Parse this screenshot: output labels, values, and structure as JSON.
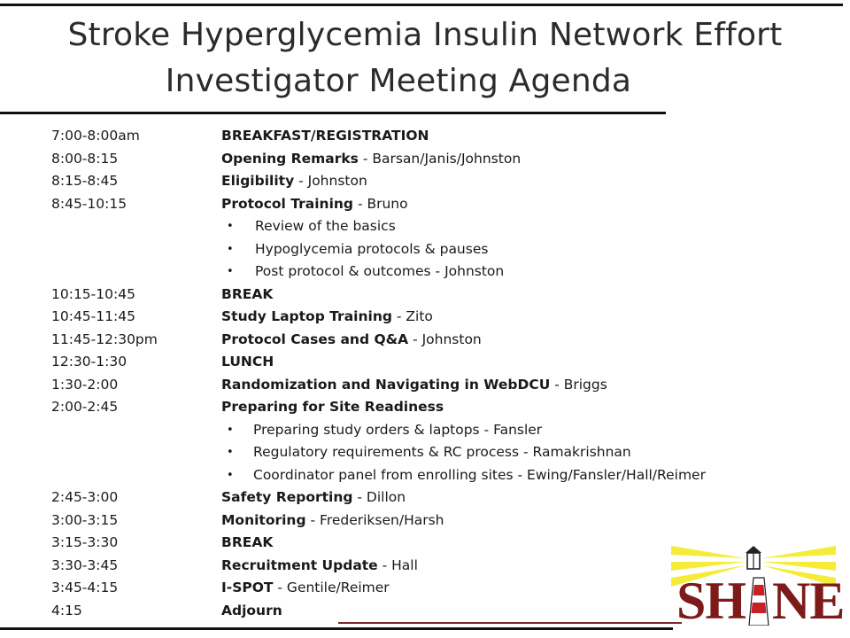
{
  "title": {
    "line1": "Stroke Hyperglycemia Insulin Network Effort",
    "line2": "Investigator Meeting Agenda"
  },
  "agenda": [
    {
      "time": "7:00-8:00am",
      "bold": "BREAKFAST/REGISTRATION",
      "rest": ""
    },
    {
      "time": "8:00-8:15",
      "bold": "Opening Remarks",
      "rest": " - Barsan/Janis/Johnston"
    },
    {
      "time": "8:15-8:45",
      "bold": "Eligibility",
      "rest": " - Johnston"
    },
    {
      "time": "8:45-10:15",
      "bold": "Protocol Training",
      "rest": " - Bruno"
    },
    {
      "bullet": "Review of the basics"
    },
    {
      "bullet": "Hypoglycemia protocols & pauses"
    },
    {
      "bullet": "Post protocol & outcomes - Johnston"
    },
    {
      "time": "10:15-10:45",
      "bold": "BREAK",
      "rest": ""
    },
    {
      "time": "10:45-11:45",
      "bold": "Study Laptop Training",
      "rest": " - Zito"
    },
    {
      "time": "11:45-12:30pm",
      "bold": "Protocol Cases and Q&A",
      "rest": " - Johnston"
    },
    {
      "time": "12:30-1:30",
      "bold": "LUNCH",
      "rest": ""
    },
    {
      "time": "1:30-2:00",
      "bold": "Randomization and Navigating in WebDCU",
      "rest": " - Briggs"
    },
    {
      "time": "2:00-2:45",
      "bold": "Preparing for Site Readiness",
      "rest": ""
    },
    {
      "bullet": "Preparing study orders & laptops - Fansler"
    },
    {
      "bullet": "Regulatory requirements & RC process - Ramakrishnan"
    },
    {
      "bullet": "Coordinator panel from enrolling sites - Ewing/Fansler/Hall/Reimer"
    },
    {
      "time": "2:45-3:00",
      "bold": "Safety Reporting",
      "rest": " - Dillon"
    },
    {
      "time": "3:00-3:15",
      "bold": "Monitoring",
      "rest": " - Frederiksen/Harsh"
    },
    {
      "time": "3:15-3:30",
      "bold": "BREAK",
      "rest": ""
    },
    {
      "time": "3:30-3:45",
      "bold": "Recruitment Update",
      "rest": " - Hall"
    },
    {
      "time": "3:45-4:15",
      "bold": "I-SPOT",
      "rest": " - Gentile/Reimer"
    },
    {
      "time": "4:15",
      "bold": "Adjourn",
      "rest": ""
    }
  ],
  "bullet_glyph": "•",
  "logo": {
    "text": "SHINE",
    "text_color": "#7d1a1a",
    "beam_color": "#f5ec3a",
    "stripe_color": "#c8202a"
  }
}
